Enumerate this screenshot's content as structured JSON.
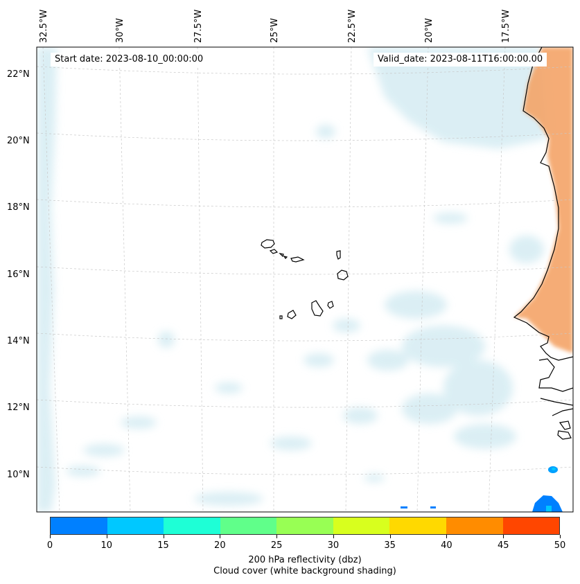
{
  "map": {
    "start_label": "Start date: 2023-08-10_00:00:00",
    "valid_label": "Valid_date: 2023-08-11T16:00:00.00",
    "lon_labels": [
      "32.5°W",
      "30°W",
      "27.5°W",
      "25°W",
      "22.5°W",
      "20°W",
      "17.5°W"
    ],
    "lat_labels": [
      "22°N",
      "20°N",
      "18°N",
      "16°N",
      "14°N",
      "12°N",
      "10°N"
    ],
    "extent": {
      "lon_min": -32.6,
      "lon_max": -16.3,
      "lat_min": 8.9,
      "lat_max": 22.8
    },
    "colors": {
      "cloud": "#cfe9f1",
      "land_heat": "#f4a468",
      "coast": "#000000",
      "grid": "#c8c8c8"
    }
  },
  "colorbar": {
    "title_line1": "200 hPa reflectivity (dbz)",
    "title_line2": "Cloud cover (white background shading)",
    "ticks": [
      "0",
      "10",
      "15",
      "20",
      "25",
      "30",
      "35",
      "40",
      "45",
      "50"
    ],
    "colors": [
      "#0080ff",
      "#00c8ff",
      "#1effd6",
      "#60ff8a",
      "#98ff54",
      "#d8ff1e",
      "#ffd900",
      "#ff8c00",
      "#ff4600"
    ]
  }
}
